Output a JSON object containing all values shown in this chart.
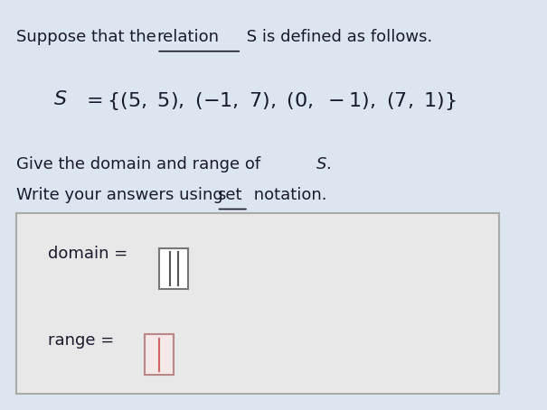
{
  "bg_color": "#dce6f0",
  "text_color": "#1a1a2e",
  "line1": "Suppose that the ",
  "line1_underline": "relation",
  "line1_rest": " S is defined as follows.",
  "line2_parts": [
    {
      "text": "S",
      "style": "italic"
    },
    {
      "text": "= {(5, 5), (−1, 7), (0, −1), (7, 1)}",
      "style": "normal"
    }
  ],
  "line3": "Give the domain and range of ",
  "line3_italic": "S.",
  "line4_pre": "Write your answers using ",
  "line4_underline": "set",
  "line4_post": " notation.",
  "domain_label": "domain = ",
  "range_label": "range = ",
  "box_bg": "#f0f0f0",
  "box_border": "#888888",
  "input_border_domain": "#8B8B8B",
  "input_border_range": "#c07070",
  "input_bg_domain": "#ffffff",
  "input_bg_range": "#f5e8e8",
  "font_size_main": 13,
  "font_size_equation": 16,
  "font_size_label": 12
}
